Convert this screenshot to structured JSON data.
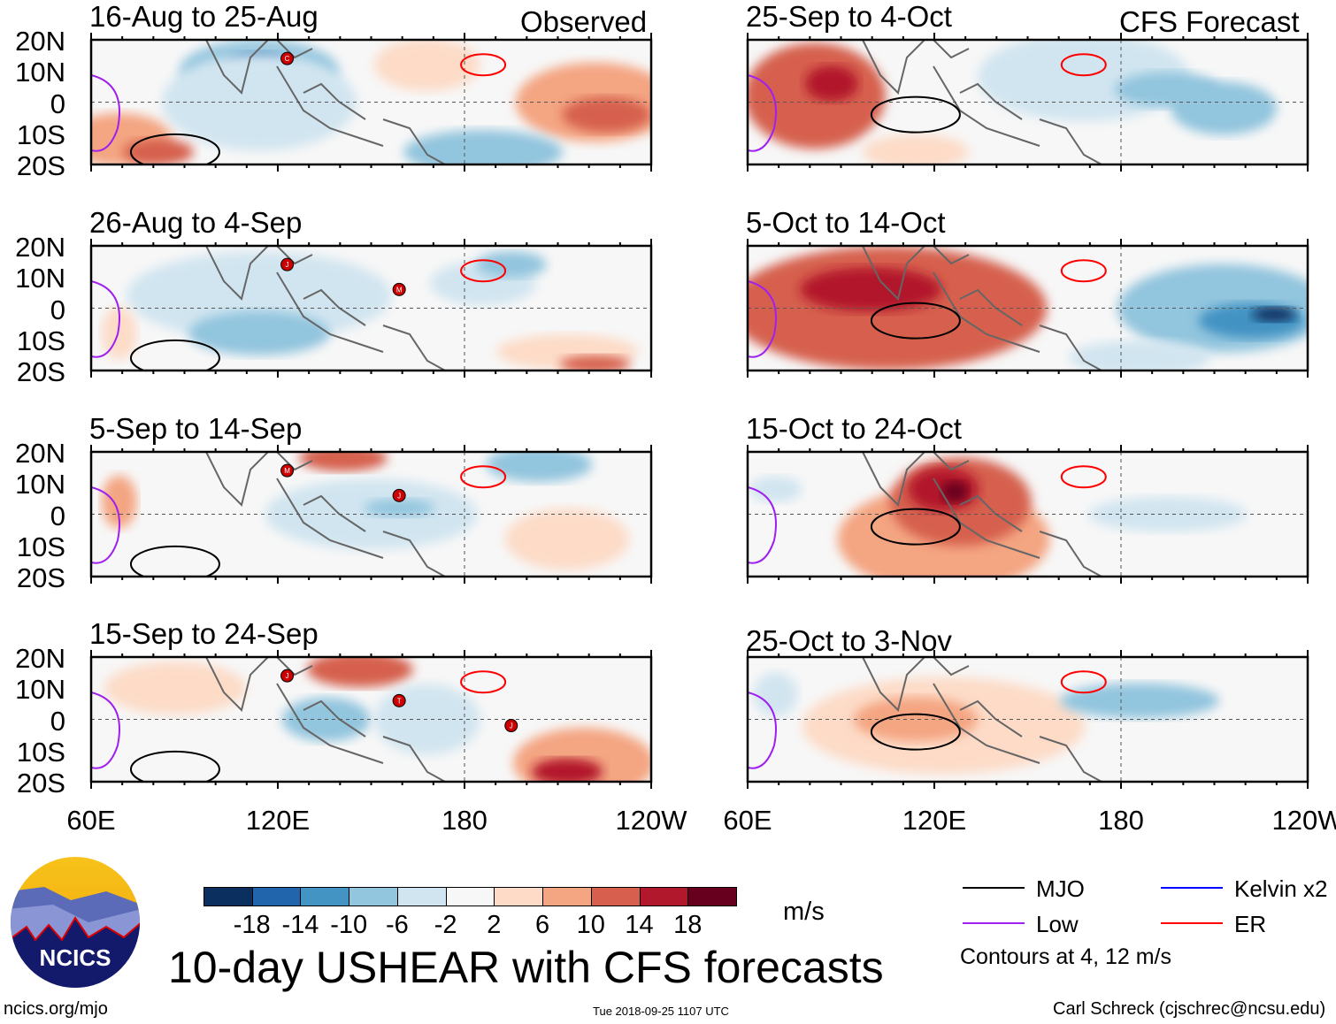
{
  "header": {
    "observed_label": "Observed",
    "forecast_label": "CFS Forecast"
  },
  "chart_data": {
    "type": "heatmap",
    "title": "10-day USHEAR with CFS forecasts",
    "units": "m/s",
    "lat_ticks": [
      "20N",
      "10N",
      "0",
      "10S",
      "20S"
    ],
    "lon_ticks": [
      "60E",
      "120E",
      "180",
      "120W"
    ],
    "lat_range": [
      -20,
      20
    ],
    "lon_range": [
      60,
      240
    ],
    "panels": [
      {
        "title": "16-Aug to 25-Aug",
        "type": "Observed",
        "storms": [
          "C"
        ]
      },
      {
        "title": "26-Aug to 4-Sep",
        "type": "Observed",
        "storms": [
          "J",
          "M"
        ]
      },
      {
        "title": "5-Sep to 14-Sep",
        "type": "Observed",
        "storms": [
          "M",
          "J"
        ]
      },
      {
        "title": "15-Sep to 24-Sep",
        "type": "Observed",
        "storms": [
          "J",
          "T",
          "J"
        ]
      },
      {
        "title": "25-Sep to 4-Oct",
        "type": "CFS Forecast",
        "storms": []
      },
      {
        "title": "5-Oct to 14-Oct",
        "type": "CFS Forecast",
        "storms": []
      },
      {
        "title": "15-Oct to 24-Oct",
        "type": "CFS Forecast",
        "storms": []
      },
      {
        "title": "25-Oct to 3-Nov",
        "type": "CFS Forecast",
        "storms": []
      }
    ],
    "colorbar": {
      "levels": [
        "-18",
        "-14",
        "-10",
        "-6",
        "-2",
        "2",
        "6",
        "10",
        "14",
        "18"
      ],
      "colors": [
        "#0b2f5e",
        "#2166ac",
        "#4393c3",
        "#92c5de",
        "#d1e5f0",
        "#f7f7f7",
        "#fddbc7",
        "#f4a582",
        "#d6604d",
        "#b2182b",
        "#67001f"
      ]
    },
    "legend": [
      {
        "label": "MJO",
        "color": "#000000"
      },
      {
        "label": "Kelvin x2",
        "color": "#0000ff"
      },
      {
        "label": "Low",
        "color": "#a020f0"
      },
      {
        "label": "ER",
        "color": "#ff0000"
      }
    ],
    "contour_note": "Contours at 4, 12 m/s"
  },
  "footer": {
    "logo_text": "NCICS",
    "url": "ncics.org/mjo",
    "timestamp": "Tue 2018-09-25 1107 UTC",
    "author": "Carl Schreck (cjschrec@ncsu.edu)"
  }
}
